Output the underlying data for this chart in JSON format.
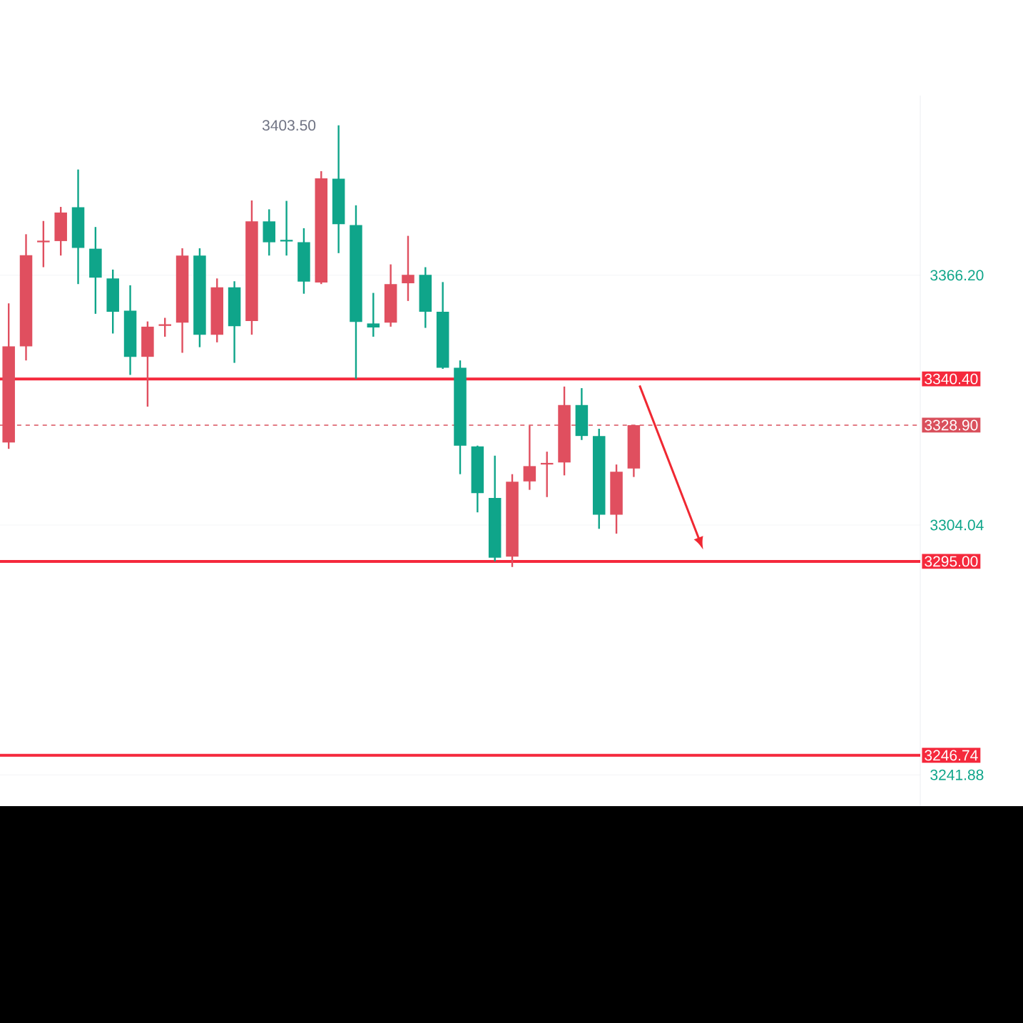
{
  "chart_data": {
    "type": "candlestick",
    "categories": [
      null,
      null,
      null,
      null,
      null,
      null,
      null,
      null,
      null,
      null,
      null,
      null,
      null,
      null,
      null,
      null,
      null,
      null,
      null,
      null,
      null,
      null,
      null,
      null,
      null,
      null,
      null,
      null,
      null,
      null,
      null,
      null,
      null,
      null,
      null,
      null,
      null,
      null,
      null,
      null,
      null,
      null,
      null,
      null,
      null,
      null,
      null,
      null,
      null,
      null,
      null,
      null,
      null
    ],
    "ohlc": [
      [
        3324.6,
        3359.2,
        3323.0,
        3348.5
      ],
      [
        3348.5,
        3376.4,
        3345.0,
        3371.2
      ],
      [
        3374.4,
        3379.7,
        3368.2,
        3374.8
      ],
      [
        3374.7,
        3383.2,
        3371.1,
        3381.8
      ],
      [
        3383.1,
        3392.5,
        3364.0,
        3373.0
      ],
      [
        3372.8,
        3378.2,
        3356.6,
        3365.6
      ],
      [
        3365.4,
        3367.6,
        3351.7,
        3357.1
      ],
      [
        3357.4,
        3363.7,
        3341.4,
        3345.9
      ],
      [
        3345.9,
        3354.7,
        3333.5,
        3353.4
      ],
      [
        3353.6,
        3355.6,
        3350.9,
        3354.0
      ],
      [
        3354.4,
        3372.9,
        3346.9,
        3371.1
      ],
      [
        3371.1,
        3372.9,
        3348.3,
        3351.4
      ],
      [
        3351.4,
        3365.4,
        3349.5,
        3363.2
      ],
      [
        3363.2,
        3364.7,
        3344.4,
        3353.5
      ],
      [
        3354.8,
        3384.8,
        3351.4,
        3379.6
      ],
      [
        3379.6,
        3382.6,
        3371.1,
        3374.4
      ],
      [
        3375.0,
        3384.7,
        3371.1,
        3374.6
      ],
      [
        3374.4,
        3377.9,
        3361.6,
        3364.6
      ],
      [
        3364.4,
        3392.1,
        3364.0,
        3390.3
      ],
      [
        3390.2,
        3403.5,
        3371.7,
        3378.9
      ],
      [
        3378.7,
        3383.6,
        3340.4,
        3354.6
      ],
      [
        3354.2,
        3361.8,
        3350.9,
        3353.2
      ],
      [
        3354.4,
        3368.9,
        3353.4,
        3364.0
      ],
      [
        3364.2,
        3376.0,
        3359.8,
        3366.3
      ],
      [
        3366.3,
        3368.2,
        3353.1,
        3357.1
      ],
      [
        3357.1,
        3364.5,
        3342.9,
        3343.2
      ],
      [
        3343.2,
        3345.0,
        3316.7,
        3323.8
      ],
      [
        3323.6,
        3323.8,
        3307.2,
        3312.0
      ],
      [
        3310.8,
        3321.3,
        3295.0,
        3295.9
      ],
      [
        3296.2,
        3316.7,
        3293.6,
        3314.8
      ],
      [
        3314.9,
        3328.8,
        3312.8,
        3318.7
      ],
      [
        3319.1,
        3322.3,
        3311.0,
        3319.5
      ],
      [
        3319.6,
        3338.5,
        3316.4,
        3333.9
      ],
      [
        3333.9,
        3338.1,
        3325.2,
        3326.2
      ],
      [
        3326.2,
        3328.0,
        3303.1,
        3306.6
      ],
      [
        3306.6,
        3319.1,
        3301.9,
        3317.3
      ],
      [
        3318.1,
        3328.9,
        3316.0,
        3328.9
      ],
      null,
      null,
      null,
      null,
      null,
      null,
      null,
      null,
      null,
      null,
      null,
      null,
      null,
      null,
      null,
      null
    ],
    "colors": [
      "#e04f5f",
      "#e04f5f",
      "#e04f5f",
      "#e04f5f",
      "#0fa58a",
      "#0fa58a",
      "#0fa58a",
      "#0fa58a",
      "#e04f5f",
      "#e04f5f",
      "#e04f5f",
      "#0fa58a",
      "#e04f5f",
      "#0fa58a",
      "#e04f5f",
      "#0fa58a",
      "#0fa58a",
      "#0fa58a",
      "#e04f5f",
      "#0fa58a",
      "#0fa58a",
      "#0fa58a",
      "#e04f5f",
      "#e04f5f",
      "#0fa58a",
      "#0fa58a",
      "#0fa58a",
      "#0fa58a",
      "#0fa58a",
      "#e04f5f",
      "#e04f5f",
      "#e04f5f",
      "#e04f5f",
      "#0fa58a",
      "#0fa58a",
      "#e04f5f",
      "#e04f5f",
      null,
      null,
      null,
      null,
      null,
      null,
      null,
      null,
      null,
      null,
      null,
      null,
      null,
      null,
      null,
      null
    ],
    "ylim": [
      3234.1,
      3410.9
    ],
    "yticks": [
      {
        "value": 3241.88,
        "label": "3241.88"
      },
      {
        "value": 3304.04,
        "label": "3304.04"
      },
      {
        "value": 3366.2,
        "label": "3366.20"
      }
    ],
    "grid": "y",
    "tick_labels": "y",
    "ref_lines": [
      {
        "axis": "y",
        "value": 3340.4,
        "label": "3340.40",
        "color": "#f5293c",
        "line_style": "solid"
      },
      {
        "axis": "y",
        "value": 3328.9,
        "label": "3328.90",
        "color": "#d9505c",
        "line_style": "dashed"
      },
      {
        "axis": "y",
        "value": 3295.0,
        "label": "3295.00",
        "color": "#f5293c",
        "line_style": "solid"
      },
      {
        "axis": "y",
        "value": 3246.74,
        "label": "3246.74",
        "color": "#f5293c",
        "line_style": "solid"
      }
    ],
    "annotations": [
      "3403.50"
    ]
  }
}
